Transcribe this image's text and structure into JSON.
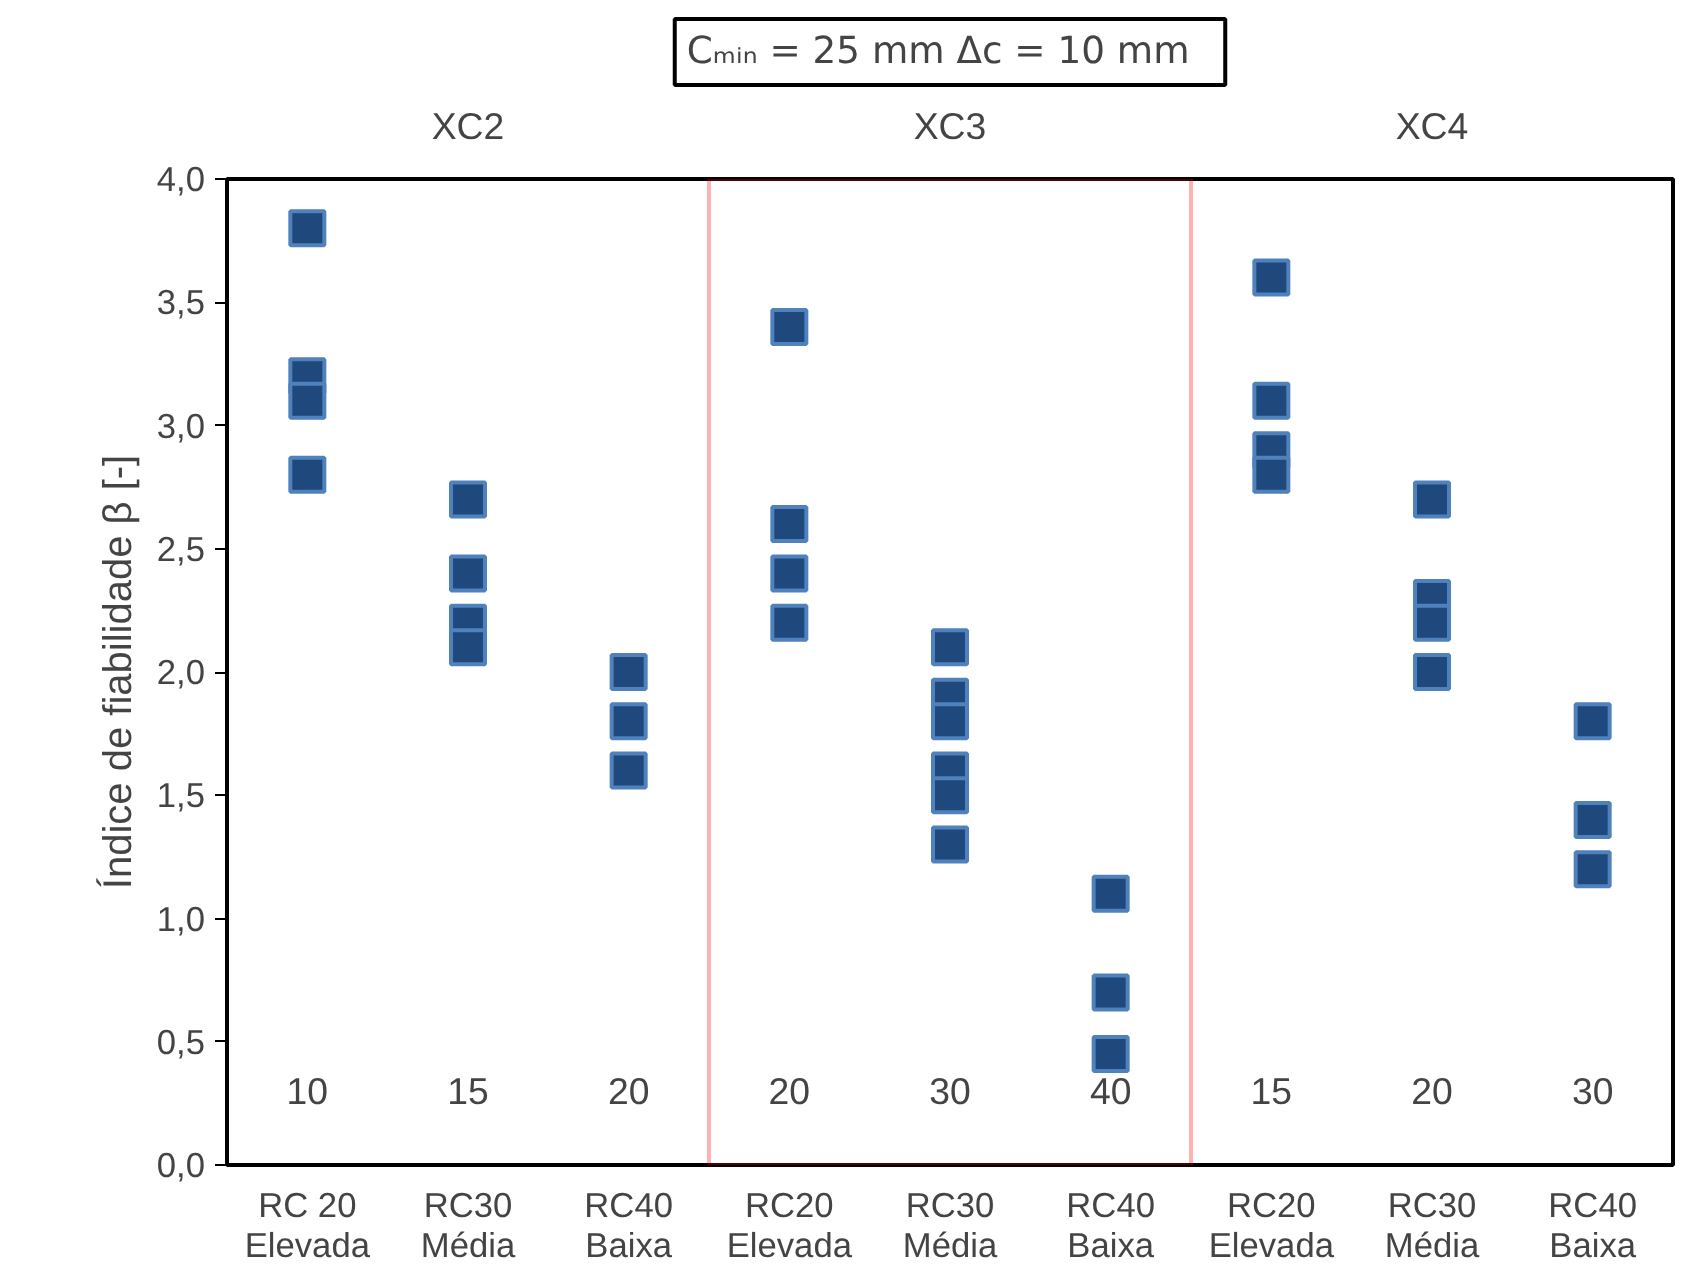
{
  "chart_data": {
    "type": "scatter",
    "title": "Cₘᵢₙ = 25 mm   Δc = 10 mm",
    "ylabel": "Índice de fiabilidade β [-]",
    "categories": [
      "RC 20\nElevada",
      "RC30\nMédia",
      "RC40\nBaixa",
      "RC20\nElevada",
      "RC30\nMédia",
      "RC40\nBaixa",
      "RC20\nElevada",
      "RC30\nMédia",
      "RC40\nBaixa"
    ],
    "series": [
      {
        "color": "#1f497d",
        "values": [
          3.8,
          2.7,
          2.0,
          3.4,
          2.1,
          1.1,
          3.6,
          2.7,
          1.8
        ]
      },
      {
        "color": "#1f497d",
        "values": [
          3.2,
          2.4,
          1.8,
          2.6,
          1.9,
          0.7,
          3.1,
          2.3,
          1.4
        ]
      },
      {
        "color": "#1f497d",
        "values": [
          3.1,
          2.2,
          1.6,
          2.4,
          1.8,
          0.45,
          2.9,
          2.2,
          1.2
        ]
      },
      {
        "color": "#1f497d",
        "values": [
          2.8,
          2.1,
          null,
          2.2,
          1.6,
          null,
          2.8,
          2.0,
          null
        ]
      },
      {
        "color": "#1f497d",
        "values": [
          null,
          null,
          null,
          null,
          1.5,
          null,
          null,
          null,
          null
        ]
      },
      {
        "color": "#1f497d",
        "values": [
          null,
          null,
          null,
          null,
          1.3,
          null,
          null,
          null,
          null
        ]
      }
    ],
    "marker": "square",
    "ylim": [
      0,
      4
    ],
    "yticks": [
      {
        "value": 0,
        "label": "0,0"
      },
      {
        "value": 0.5,
        "label": "0,5"
      },
      {
        "value": 1,
        "label": "1,0"
      },
      {
        "value": 1.5,
        "label": "1,5"
      },
      {
        "value": 2,
        "label": "2,0"
      },
      {
        "value": 2.5,
        "label": "2,5"
      },
      {
        "value": 3,
        "label": "3,0"
      },
      {
        "value": 3.5,
        "label": "3,5"
      },
      {
        "value": 4,
        "label": "4,0"
      }
    ],
    "annotations": [
      "XC2",
      "XC3",
      "XC4",
      "10",
      "15",
      "20",
      "20",
      "30",
      "40",
      "15",
      "20",
      "30"
    ]
  }
}
